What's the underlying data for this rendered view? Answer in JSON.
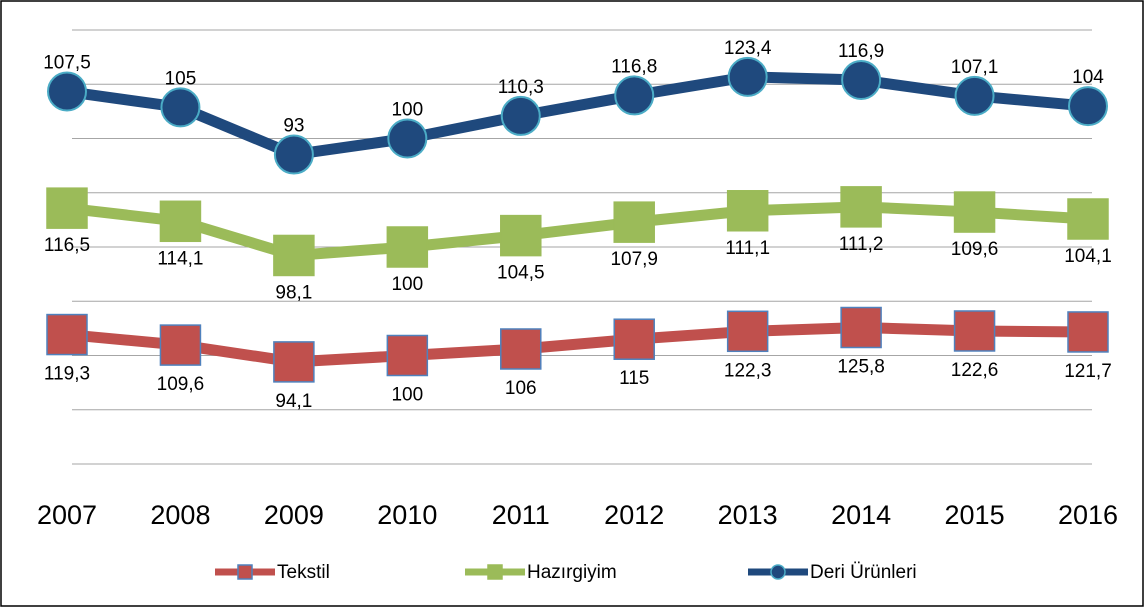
{
  "chart_data": {
    "type": "line",
    "stacked": true,
    "categories": [
      "2007",
      "2008",
      "2009",
      "2010",
      "2011",
      "2012",
      "2013",
      "2014",
      "2015",
      "2016"
    ],
    "series": [
      {
        "name": "Tekstil",
        "color": "#c0504d",
        "marker": "square",
        "marker_edge": "#4f81bd",
        "values": [
          119.3,
          109.6,
          94.1,
          100,
          106,
          115,
          122.3,
          125.8,
          122.6,
          121.7
        ],
        "value_labels": [
          "119,3",
          "109,6",
          "94,1",
          "100",
          "106",
          "115",
          "122,3",
          "125,8",
          "122,6",
          "121,7"
        ]
      },
      {
        "name": "Hazırgiyim",
        "color": "#9bbb59",
        "marker": "square",
        "marker_edge": "#9bbb59",
        "values": [
          116.5,
          114.1,
          98.1,
          100,
          104.5,
          107.9,
          111.1,
          111.2,
          109.6,
          104.1
        ],
        "value_labels": [
          "116,5",
          "114,1",
          "98,1",
          "100",
          "104,5",
          "107,9",
          "111,1",
          "111,2",
          "109,6",
          "104,1"
        ]
      },
      {
        "name": "Deri Ürünleri",
        "color": "#1f497d",
        "marker": "circle",
        "marker_edge": "#4bacc6",
        "values": [
          107.5,
          105,
          93,
          100,
          110.3,
          116.8,
          123.4,
          116.9,
          107.1,
          104
        ],
        "value_labels": [
          "107,5",
          "105",
          "93",
          "100",
          "110,3",
          "116,8",
          "123,4",
          "116,9",
          "107,1",
          "104"
        ]
      }
    ],
    "ylim": [
      0,
      400
    ],
    "yticks": [
      0,
      50,
      100,
      150,
      200,
      250,
      300,
      350,
      400
    ],
    "grid": true
  }
}
